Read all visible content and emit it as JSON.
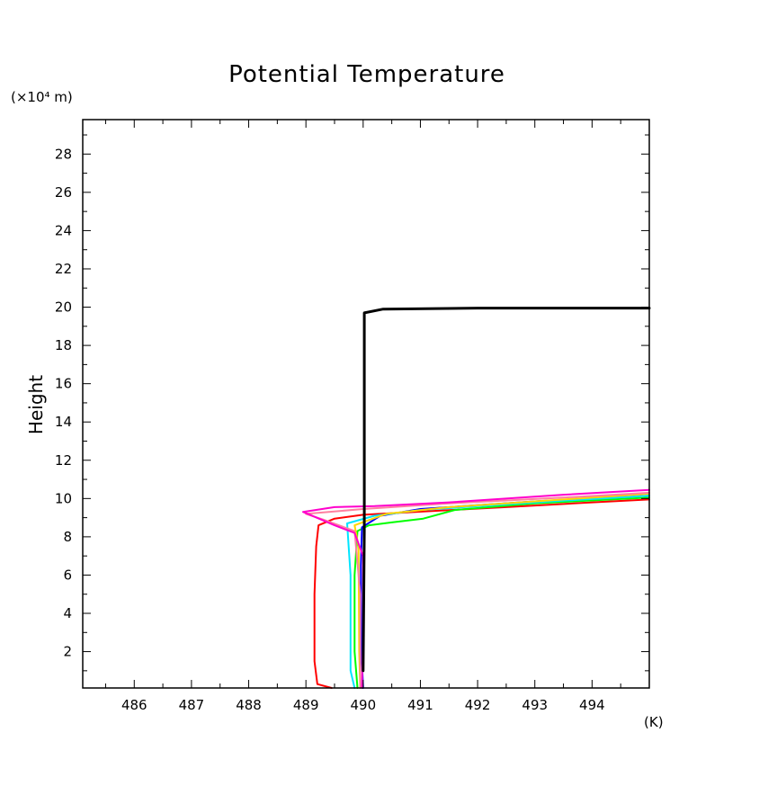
{
  "chart_data": {
    "type": "line",
    "title": "Potential Temperature",
    "ylabel": "Height",
    "y_unit": "(×10⁴ m)",
    "x_unit": "(K)",
    "xlim": [
      485.1,
      495
    ],
    "ylim": [
      0.1,
      29.8
    ],
    "xticks": [
      486,
      487,
      488,
      489,
      490,
      491,
      492,
      493,
      494
    ],
    "yticks": [
      2,
      4,
      6,
      8,
      10,
      12,
      14,
      16,
      18,
      20,
      22,
      24,
      26,
      28
    ],
    "grid": false,
    "legend": "none",
    "series": [
      {
        "color": "#000000",
        "width": 3,
        "points": [
          [
            490.0,
            1.0
          ],
          [
            490.02,
            8.3
          ],
          [
            490.02,
            19.7
          ],
          [
            490.35,
            19.9
          ],
          [
            492.0,
            19.95
          ],
          [
            495.0,
            19.95
          ]
        ]
      },
      {
        "color": "#ff0000",
        "width": 2,
        "points": [
          [
            489.45,
            0.1
          ],
          [
            489.2,
            0.3
          ],
          [
            489.15,
            1.5
          ],
          [
            489.15,
            5.0
          ],
          [
            489.18,
            7.5
          ],
          [
            489.22,
            8.6
          ],
          [
            489.5,
            8.95
          ],
          [
            490.0,
            9.15
          ],
          [
            491.2,
            9.35
          ],
          [
            492.5,
            9.55
          ],
          [
            494.0,
            9.8
          ],
          [
            495.0,
            9.95
          ]
        ]
      },
      {
        "color": "#00ff00",
        "width": 2,
        "points": [
          [
            489.9,
            0.1
          ],
          [
            489.85,
            2.0
          ],
          [
            489.85,
            6.0
          ],
          [
            489.9,
            8.3
          ],
          [
            490.1,
            8.6
          ],
          [
            490.5,
            8.75
          ],
          [
            491.05,
            8.95
          ],
          [
            491.6,
            9.4
          ],
          [
            493.0,
            9.75
          ],
          [
            495.0,
            10.05
          ]
        ]
      },
      {
        "color": "#0000ff",
        "width": 2,
        "points": [
          [
            490.0,
            0.1
          ],
          [
            489.97,
            2.0
          ],
          [
            489.96,
            6.5
          ],
          [
            489.98,
            8.5
          ],
          [
            490.3,
            9.1
          ],
          [
            491.0,
            9.45
          ],
          [
            493.0,
            9.85
          ],
          [
            495.0,
            10.15
          ]
        ]
      },
      {
        "color": "#00e5ff",
        "width": 2,
        "points": [
          [
            489.85,
            0.1
          ],
          [
            489.78,
            1.0
          ],
          [
            489.78,
            6.0
          ],
          [
            489.72,
            8.7
          ],
          [
            490.2,
            9.1
          ],
          [
            491.0,
            9.4
          ],
          [
            493.0,
            9.8
          ],
          [
            495.0,
            10.15
          ]
        ]
      },
      {
        "color": "#ffd700",
        "width": 2,
        "points": [
          [
            489.95,
            0.1
          ],
          [
            489.93,
            2.0
          ],
          [
            489.92,
            7.5
          ],
          [
            489.85,
            8.6
          ],
          [
            490.4,
            9.2
          ],
          [
            491.5,
            9.55
          ],
          [
            493.5,
            9.95
          ],
          [
            495.0,
            10.25
          ]
        ]
      },
      {
        "color": "#ff80a0",
        "width": 2,
        "points": [
          [
            489.95,
            0.1
          ],
          [
            489.95,
            5.0
          ],
          [
            489.85,
            8.3
          ],
          [
            489.3,
            8.9
          ],
          [
            489.0,
            9.2
          ],
          [
            490.0,
            9.45
          ],
          [
            491.5,
            9.75
          ],
          [
            493.5,
            10.05
          ],
          [
            495.0,
            10.3
          ]
        ]
      },
      {
        "color": "#ff00cc",
        "width": 2,
        "points": [
          [
            489.98,
            0.1
          ],
          [
            490.0,
            3.0
          ],
          [
            490.0,
            7.0
          ],
          [
            489.85,
            8.2
          ],
          [
            489.5,
            8.6
          ],
          [
            488.95,
            9.3
          ],
          [
            489.5,
            9.55
          ],
          [
            490.2,
            9.6
          ],
          [
            491.5,
            9.8
          ],
          [
            493.5,
            10.2
          ],
          [
            495.0,
            10.45
          ]
        ]
      }
    ]
  }
}
